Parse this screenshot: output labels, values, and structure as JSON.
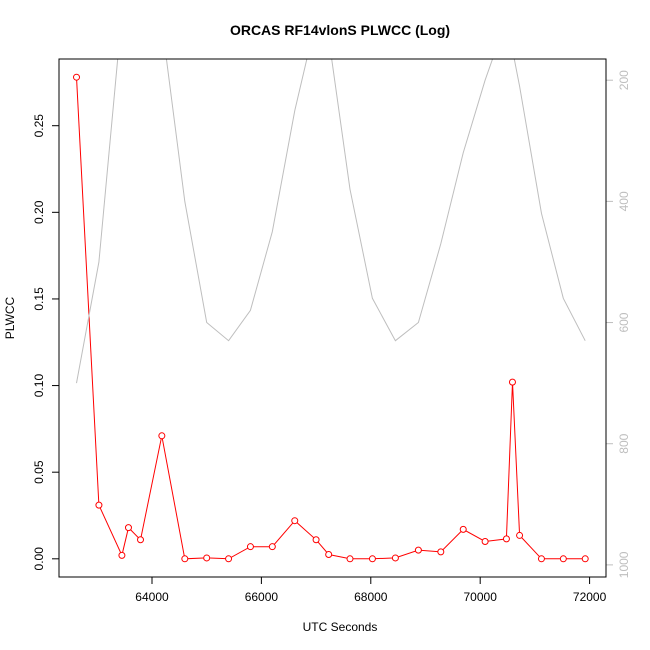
{
  "chart_data": {
    "type": "line",
    "title": "ORCAS RF14vlonS PLWCC (Log)",
    "xlabel": "UTC Seconds",
    "ylabel": "PLWCC",
    "xlim": [
      62300,
      72300
    ],
    "ylim": [
      -0.0105,
      0.2885
    ],
    "x_ticks": [
      64000,
      66000,
      68000,
      70000,
      72000
    ],
    "x_tick_labels": [
      "64000",
      "66000",
      "68000",
      "70000",
      "72000"
    ],
    "y_ticks": [
      0.0,
      0.05,
      0.1,
      0.15,
      0.2,
      0.25
    ],
    "y_tick_labels": [
      "0.00",
      "0.05",
      "0.10",
      "0.15",
      "0.20",
      "0.25"
    ],
    "y2_ticks": [
      200,
      400,
      600,
      800,
      1000
    ],
    "y2_tick_labels": [
      "200",
      "400",
      "600",
      "800",
      "1000"
    ],
    "y2lim": [
      1020,
      165
    ],
    "grid": false,
    "series": [
      {
        "color": "#ff0000",
        "marker": "circle",
        "x": [
          62620,
          63030,
          63450,
          63570,
          63790,
          64180,
          64600,
          65000,
          65400,
          65800,
          66200,
          66610,
          67000,
          67230,
          67620,
          68030,
          68450,
          68870,
          69280,
          69690,
          70090,
          70480,
          70590,
          70720,
          71120,
          71520,
          71920
        ],
        "y": [
          0.278,
          0.031,
          0.002,
          0.018,
          0.011,
          0.071,
          0.0,
          0.0005,
          0.0,
          0.007,
          0.007,
          0.022,
          0.011,
          0.0025,
          0.0,
          0.0,
          0.0005,
          0.005,
          0.004,
          0.017,
          0.01,
          0.0115,
          0.102,
          0.0135,
          0.0,
          0.0,
          0.0
        ]
      },
      {
        "color": "#bebebe",
        "axis": "right",
        "x": [
          62620,
          63030,
          63450,
          63870,
          64200,
          64600,
          65000,
          65400,
          65800,
          66200,
          66610,
          67000,
          67230,
          67620,
          68030,
          68450,
          68870,
          69280,
          69690,
          70090,
          70480,
          70590,
          70720,
          71120,
          71520,
          71920
        ],
        "y": [
          700,
          500,
          90,
          60,
          120,
          400,
          600,
          630,
          580,
          450,
          250,
          100,
          130,
          380,
          560,
          630,
          600,
          470,
          320,
          200,
          100,
          150,
          210,
          420,
          560,
          630
        ]
      }
    ],
    "colors": {
      "axis": "#000000",
      "right_axis": "#bebebe"
    }
  }
}
